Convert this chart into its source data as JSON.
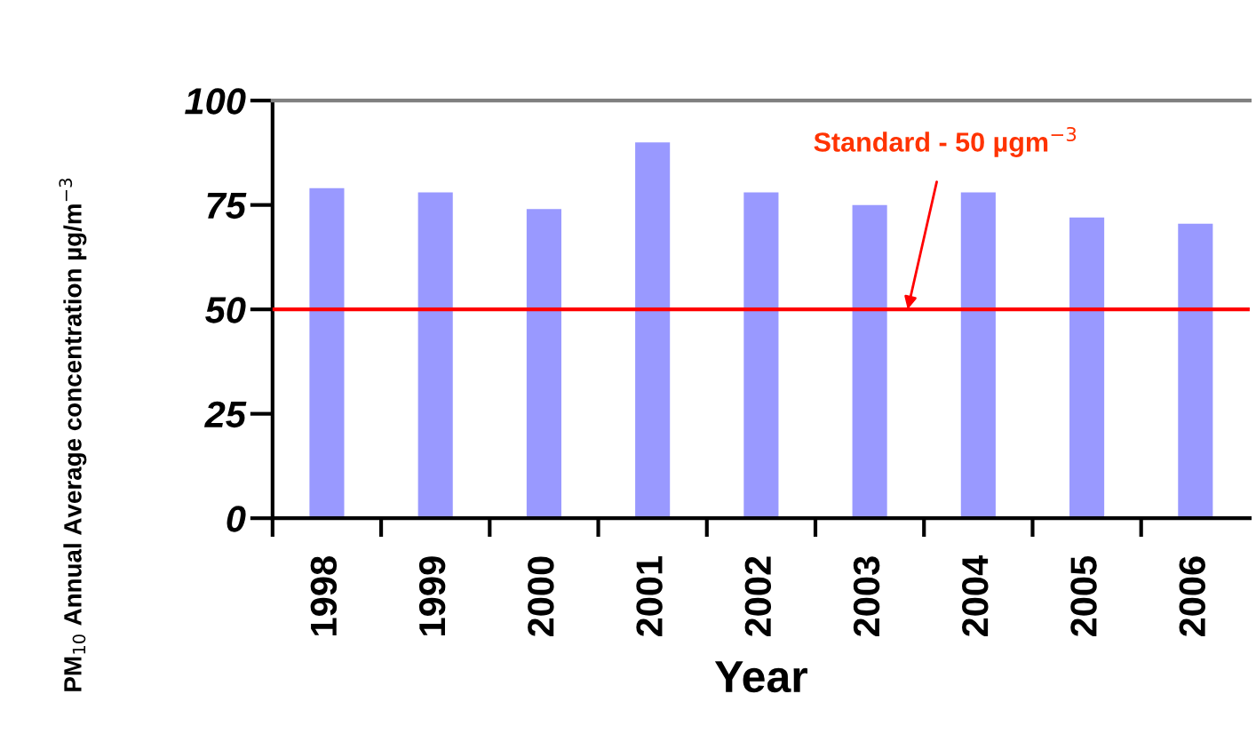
{
  "chart_data": {
    "type": "bar",
    "xlabel": "Year",
    "ylabel": "PM$_{10}$ Annual Average concentration µg/m$^{−3}$",
    "categories": [
      "1998",
      "1999",
      "2000",
      "2001",
      "2002",
      "2003",
      "2004",
      "2005",
      "2006"
    ],
    "values": [
      79,
      78,
      74,
      90,
      78,
      75,
      78,
      72,
      70.5
    ],
    "color": "#9999ff",
    "ylim": [
      0,
      100
    ],
    "yticks": [
      0,
      25,
      50,
      75,
      100
    ],
    "grid": false,
    "ref_lines": [
      {
        "axis": "y",
        "value": 50,
        "label": "Standard - 50 µgm$^{−3}$",
        "color": "#ff0000",
        "line_style": "solid"
      }
    ]
  }
}
